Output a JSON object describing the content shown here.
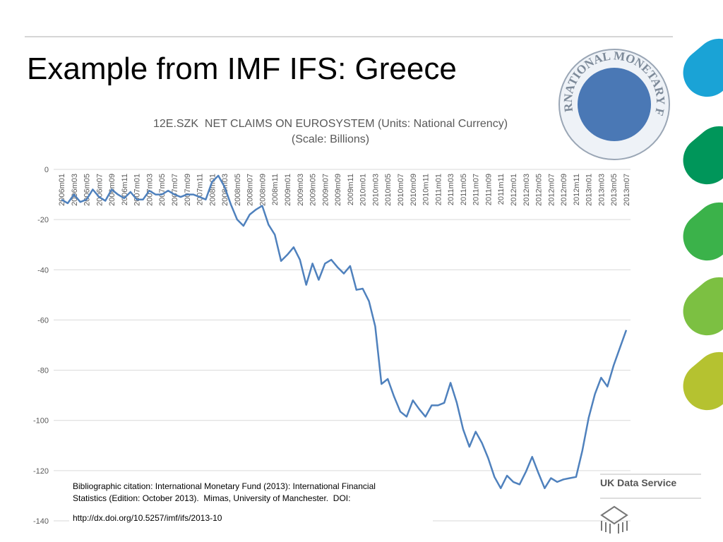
{
  "slide": {
    "title": "Example from IMF IFS: Greece",
    "citation": [
      "Bibliographic citation: International Monetary Fund (2013): International Financial",
      "Statistics (Edition: October 2013).  Mimas, University of Manchester.  DOI:",
      "http://dx.doi.org/10.5257/imf/ifs/2013-10"
    ],
    "logo_text": "INTERNATIONAL MONETARY FUND",
    "brand": "UK Data Service"
  },
  "chart_data": {
    "type": "line",
    "title": "12E.SZK  NET CLAIMS ON EUROSYSTEM (Units: National Currency)",
    "subtitle": "(Scale: Billions)",
    "categories": [
      "2006m01",
      null,
      "2006m03",
      null,
      "2006m05",
      null,
      "2006m07",
      null,
      "2006m09",
      null,
      "2006m11",
      null,
      "2007m01",
      null,
      "2007m03",
      null,
      "2007m05",
      null,
      "2007m07",
      null,
      "2007m09",
      null,
      "2007m11",
      null,
      "2008m01",
      null,
      "2008m03",
      null,
      "2008m05",
      null,
      "2008m07",
      null,
      "2008m09",
      null,
      "2008m11",
      null,
      "2009m01",
      null,
      "2009m03",
      null,
      "2009m05",
      null,
      "2009m07",
      null,
      "2009m09",
      null,
      "2009m11",
      null,
      "2010m01",
      null,
      "2010m03",
      null,
      "2010m05",
      null,
      "2010m07",
      null,
      "2010m09",
      null,
      "2010m11",
      null,
      "2011m01",
      null,
      "2011m03",
      null,
      "2011m05",
      null,
      "2011m07",
      null,
      "2011m09",
      null,
      "2011m11",
      null,
      "2012m01",
      null,
      "2012m03",
      null,
      "2012m05",
      null,
      "2012m07",
      null,
      "2012m09",
      null,
      "2012m11",
      null,
      "2013m01",
      null,
      "2013m03",
      null,
      "2013m05",
      null,
      "2013m07"
    ],
    "series": [
      {
        "name": "12E.SZK",
        "color": "#4f81bd",
        "values": [
          -12,
          -13.5,
          -10,
          -13,
          -12,
          -8,
          -11,
          -12.5,
          -8,
          -10,
          -11.5,
          -9,
          -12,
          -12,
          -8.5,
          -10,
          -10,
          -8.5,
          -10,
          -11,
          -10,
          -10,
          -11,
          -12,
          -5,
          -2.5,
          -7,
          -14,
          -20,
          -22.5,
          -18,
          -16,
          -14.5,
          -22,
          -26,
          -36.5,
          -34,
          -31,
          -36,
          -46,
          -37.5,
          -44,
          -37.5,
          -36,
          -39,
          -41.5,
          -38.5,
          -48,
          -47.5,
          -52.5,
          -62.5,
          -85.5,
          -83.5,
          -90.5,
          -96.5,
          -98.5,
          -92,
          -95.5,
          -98.5,
          -94,
          -94,
          -93,
          -85,
          -93,
          -103.5,
          -110.5,
          -104.5,
          -109,
          -115,
          -122.5,
          -127,
          -122,
          -124.5,
          -125.5,
          -120.5,
          -114.5,
          -121,
          -127,
          -123,
          -124.5,
          -123.5,
          -123,
          -122.5,
          -112,
          -99,
          -89.5,
          -83,
          -86.5,
          -78,
          -71,
          -64
        ]
      }
    ],
    "ylim": [
      -140,
      0
    ],
    "yticks": [
      0,
      -20,
      -40,
      -60,
      -80,
      -100,
      -120,
      -140
    ],
    "grid": true
  }
}
